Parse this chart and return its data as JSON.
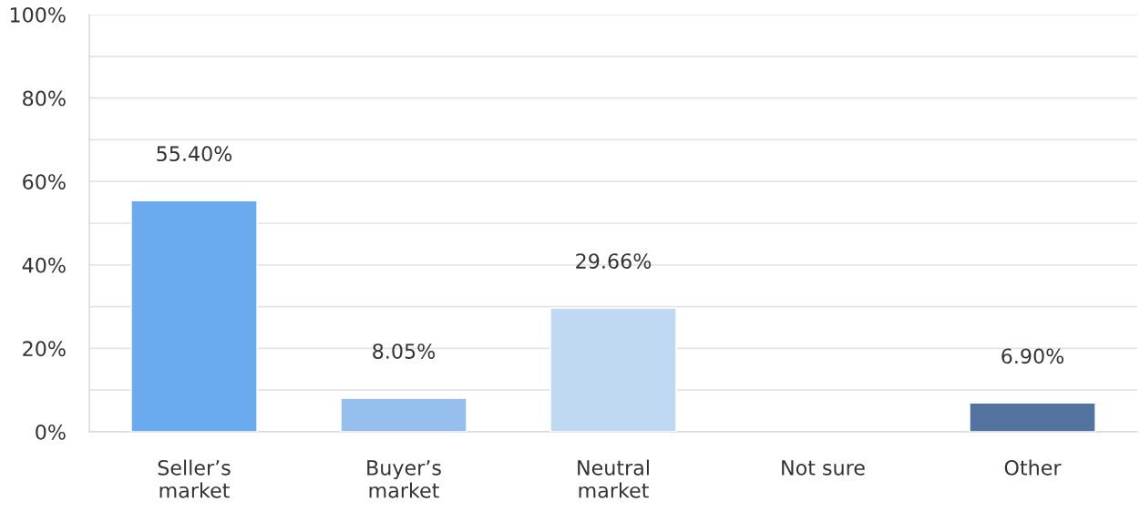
{
  "chart_data": {
    "type": "bar",
    "categories": [
      "Seller’s\nmarket",
      "Buyer’s\nmarket",
      "Neutral\nmarket",
      "Not sure",
      "Other"
    ],
    "values": [
      55.4,
      8.05,
      29.66,
      null,
      6.9
    ],
    "colors": [
      "#6aabf0",
      "#97bfee",
      "#bfd9f2",
      null,
      "#52739f"
    ],
    "value_labels": [
      "55.40%",
      "8.05%",
      "29.66%",
      null,
      "6.90%"
    ],
    "ylim": [
      0,
      100
    ],
    "yticks": [
      {
        "value": 0,
        "label": "0%"
      },
      {
        "value": 10,
        "label": null
      },
      {
        "value": 20,
        "label": "20%"
      },
      {
        "value": 30,
        "label": null
      },
      {
        "value": 40,
        "label": "40%"
      },
      {
        "value": 50,
        "label": null
      },
      {
        "value": 60,
        "label": "60%"
      },
      {
        "value": 70,
        "label": null
      },
      {
        "value": 80,
        "label": "80%"
      },
      {
        "value": 90,
        "label": null
      },
      {
        "value": 100,
        "label": "100%"
      }
    ],
    "grid": "y"
  }
}
